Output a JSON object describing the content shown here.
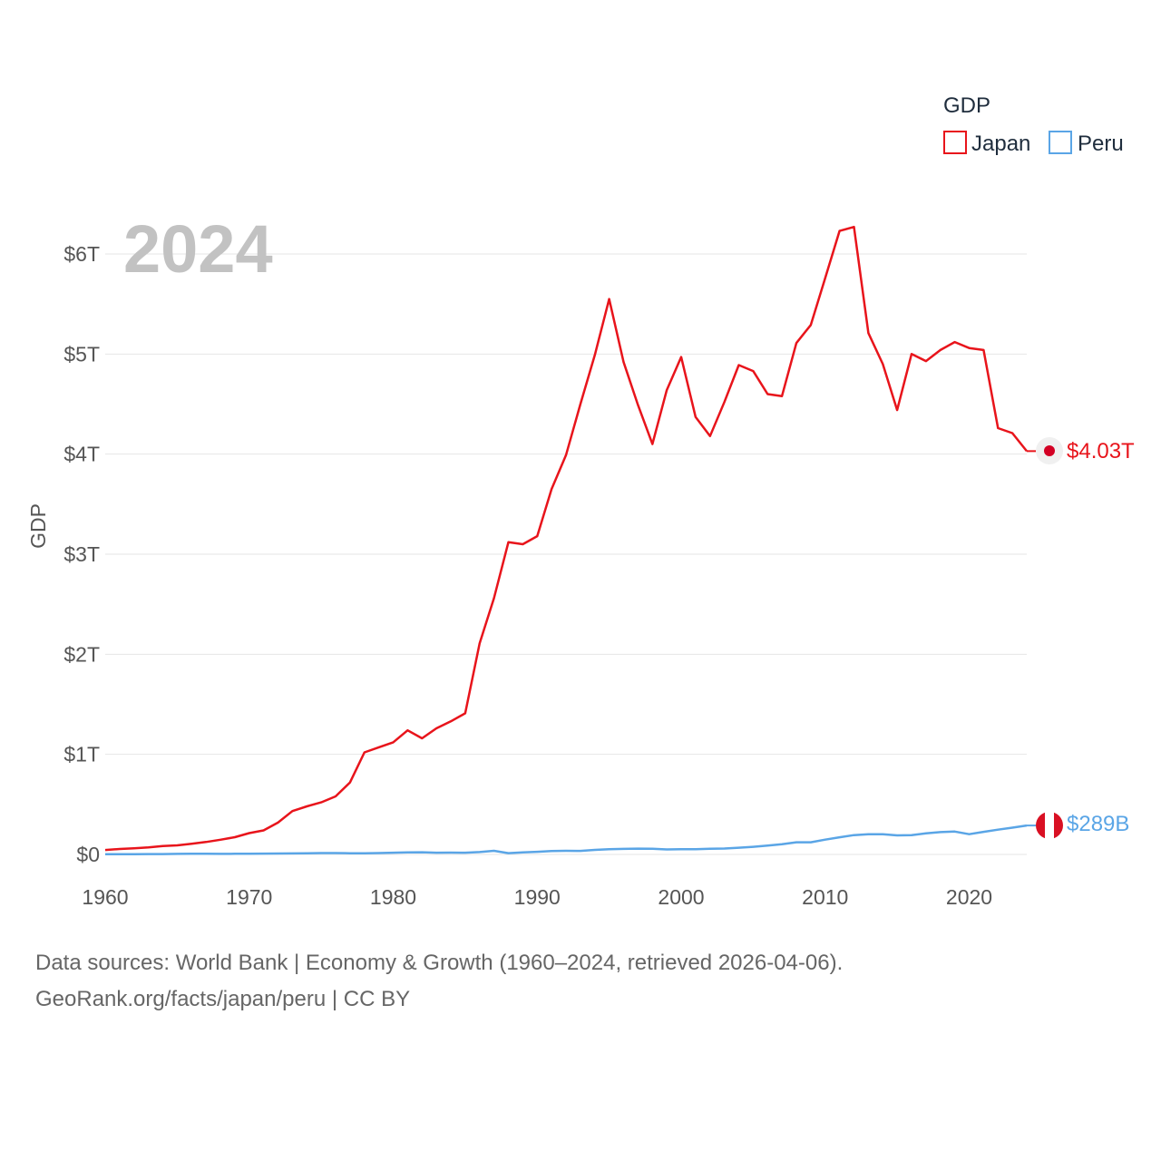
{
  "colors": {
    "japan": "#e8141b",
    "peru": "#5aa5e6",
    "grid": "#e6e6e6",
    "tick": "#555555"
  },
  "chart_data": {
    "type": "line",
    "title": "GDP",
    "year_label": "2024",
    "ylabel": "GDP",
    "xlabel": "",
    "xlim": [
      1960,
      2024
    ],
    "ylim": [
      0,
      6.0
    ],
    "y_ticks": [
      0,
      1,
      2,
      3,
      4,
      5,
      6
    ],
    "y_tick_labels": [
      "$0",
      "$1T",
      "$2T",
      "$3T",
      "$4T",
      "$5T",
      "$6T"
    ],
    "x_ticks": [
      1960,
      1970,
      1980,
      1990,
      2000,
      2010,
      2020
    ],
    "x_tick_labels": [
      "1960",
      "1970",
      "1980",
      "1990",
      "2000",
      "2010",
      "2020"
    ],
    "units": "trillion USD",
    "legend": {
      "title": "GDP",
      "position": "top-right"
    },
    "series": [
      {
        "name": "Japan",
        "color": "#e8141b",
        "end_label": "$4.03T",
        "x_start": 1960,
        "values": [
          0.044,
          0.054,
          0.062,
          0.071,
          0.084,
          0.091,
          0.106,
          0.124,
          0.147,
          0.172,
          0.213,
          0.24,
          0.318,
          0.433,
          0.48,
          0.52,
          0.58,
          0.72,
          1.02,
          1.07,
          1.12,
          1.24,
          1.16,
          1.26,
          1.33,
          1.41,
          2.11,
          2.56,
          3.12,
          3.1,
          3.18,
          3.65,
          3.99,
          4.5,
          4.99,
          5.55,
          4.92,
          4.49,
          4.1,
          4.64,
          4.97,
          4.37,
          4.18,
          4.52,
          4.89,
          4.83,
          4.6,
          4.58,
          5.11,
          5.29,
          5.76,
          6.23,
          6.27,
          5.21,
          4.9,
          4.44,
          5.0,
          4.93,
          5.04,
          5.12,
          5.06,
          5.04,
          4.26,
          4.21,
          4.03
        ]
      },
      {
        "name": "Peru",
        "color": "#5aa5e6",
        "end_label": "$289B",
        "x_start": 1960,
        "values": [
          0.002,
          0.003,
          0.003,
          0.004,
          0.004,
          0.005,
          0.006,
          0.006,
          0.005,
          0.006,
          0.007,
          0.008,
          0.009,
          0.01,
          0.012,
          0.014,
          0.014,
          0.012,
          0.011,
          0.014,
          0.017,
          0.021,
          0.022,
          0.017,
          0.018,
          0.017,
          0.024,
          0.036,
          0.013,
          0.021,
          0.026,
          0.034,
          0.036,
          0.035,
          0.045,
          0.053,
          0.055,
          0.058,
          0.056,
          0.05,
          0.053,
          0.053,
          0.056,
          0.059,
          0.067,
          0.076,
          0.088,
          0.102,
          0.121,
          0.121,
          0.148,
          0.171,
          0.193,
          0.202,
          0.201,
          0.19,
          0.192,
          0.211,
          0.223,
          0.228,
          0.202,
          0.226,
          0.247,
          0.267,
          0.289
        ]
      }
    ]
  },
  "footer": {
    "line1": "Data sources: World Bank | Economy & Growth (1960–2024, retrieved 2026-04-06).",
    "line2": "GeoRank.org/facts/japan/peru | CC BY"
  }
}
